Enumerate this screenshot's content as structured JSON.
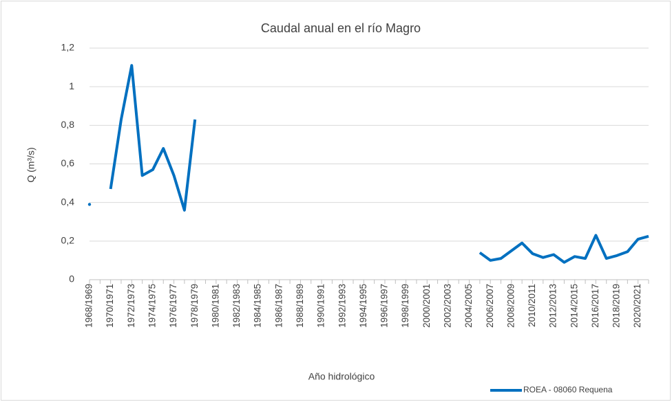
{
  "chart_data": {
    "type": "line",
    "title": "Caudal anual en el río Magro",
    "x_label": "Año hidrológico",
    "y_label": "Q (m³/s)",
    "categories": [
      "1968/1969",
      null,
      "1970/1971",
      null,
      "1972/1973",
      null,
      "1974/1975",
      null,
      "1976/1977",
      null,
      "1978/1979",
      null,
      "1980/1981",
      null,
      "1982/1983",
      null,
      "1984/1985",
      null,
      "1986/1987",
      null,
      "1988/1989",
      null,
      "1990/1991",
      null,
      "1992/1993",
      null,
      "1994/1995",
      null,
      "1996/1997",
      null,
      "1998/1999",
      null,
      "2000/2001",
      null,
      "2002/2003",
      null,
      "2004/2005",
      null,
      "2006/2007",
      null,
      "2008/2009",
      null,
      "2010/2011",
      null,
      "2012/2013",
      null,
      "2014/2015",
      null,
      "2016/2017",
      null,
      "2018/2019",
      null,
      "2020/2021",
      null
    ],
    "series": [
      {
        "name": "ROEA - 08060 Requena",
        "color": "#0070c0",
        "values": [
          0.39,
          null,
          0.47,
          0.83,
          1.11,
          0.54,
          0.57,
          0.68,
          0.54,
          0.36,
          0.83,
          null,
          null,
          null,
          null,
          null,
          null,
          null,
          null,
          null,
          null,
          null,
          null,
          null,
          null,
          null,
          null,
          null,
          null,
          null,
          null,
          null,
          null,
          null,
          null,
          null,
          null,
          0.14,
          0.1,
          0.11,
          0.15,
          0.19,
          0.135,
          0.115,
          0.13,
          0.09,
          0.12,
          0.11,
          0.23,
          0.11,
          0.125,
          0.145,
          0.21,
          0.225
        ]
      }
    ],
    "ylim": [
      0,
      1.2
    ],
    "yticks": [
      0,
      {
        "value": 0.2,
        "label": "0,2"
      },
      {
        "value": 0.4,
        "label": "0,4"
      },
      {
        "value": 0.6,
        "label": "0,6"
      },
      {
        "value": 0.8,
        "label": "0,8"
      },
      1,
      {
        "value": 1.2,
        "label": "1,2"
      }
    ],
    "grid": true,
    "legend": "bottom-right"
  }
}
